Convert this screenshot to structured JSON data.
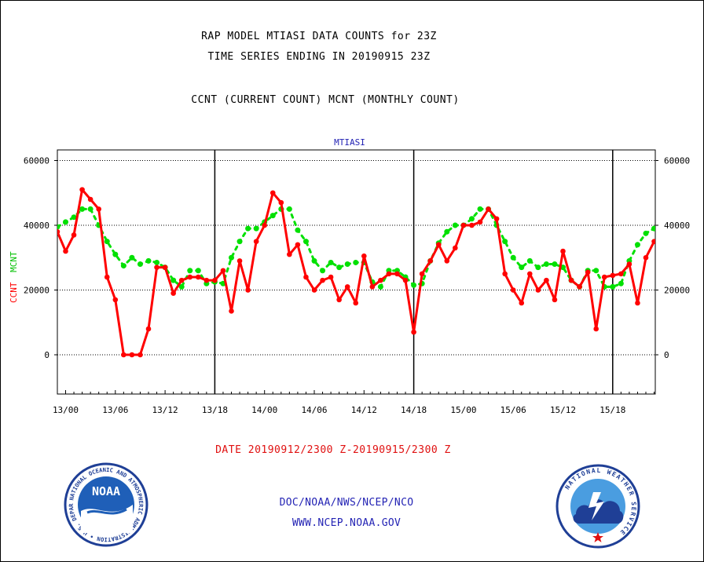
{
  "header": {
    "title1": "RAP MODEL MTIASI DATA COUNTS for 23Z",
    "title2": "TIME SERIES ENDING IN 20190915 23Z",
    "title3": "CCNT (CURRENT COUNT) MCNT (MONTHLY COUNT)"
  },
  "footer": {
    "date_range": "DATE 20190912/2300 Z-20190915/2300 Z",
    "line1": "DOC/NOAA/NWS/NCEP/NCO",
    "line2": "WWW.NCEP.NOAA.GOV",
    "noaa_logo_text": "NOAA",
    "noaa_ring_text": "NATIONAL OCEANIC AND ATMOSPHERIC ADMINISTRATION • U.S. DEPARTMENT OF COMMERCE",
    "nws_ring_text": "NATIONAL WEATHER SERVICE"
  },
  "colors": {
    "ccnt": "#ff0000",
    "mcnt": "#00e000",
    "title": "#000000",
    "chart_title": "#2323b4",
    "date_text": "#e01010",
    "footer_text": "#2323b4"
  },
  "chart_data": {
    "type": "line",
    "title": "MTIASI",
    "ylabel_parts": [
      "CCNT",
      "MCNT"
    ],
    "ylim": [
      -12000,
      63000
    ],
    "yticks": [
      0,
      20000,
      40000,
      60000
    ],
    "ytick_labels": [
      "0",
      "20000",
      "40000",
      "60000"
    ],
    "xlim": [
      -0.8,
      71
    ],
    "xticks": [
      0,
      6,
      12,
      18,
      24,
      30,
      36,
      42,
      48,
      54,
      60,
      66
    ],
    "xtick_labels": [
      "13/00",
      "13/06",
      "13/12",
      "13/18",
      "14/00",
      "14/06",
      "14/12",
      "14/18",
      "15/00",
      "15/06",
      "15/12",
      "15/18"
    ],
    "day_boundaries": [
      18,
      42,
      66
    ],
    "grid": true,
    "series": [
      {
        "name": "CCNT",
        "x": [
          -1,
          0,
          1,
          2,
          3,
          4,
          5,
          6,
          7,
          8,
          9,
          10,
          11,
          12,
          13,
          14,
          15,
          16,
          17,
          18,
          19,
          20,
          21,
          22,
          23,
          24,
          25,
          26,
          27,
          28,
          29,
          30,
          31,
          32,
          33,
          34,
          35,
          36,
          37,
          38,
          39,
          40,
          41,
          42,
          43,
          44,
          45,
          46,
          47,
          48,
          49,
          50,
          51,
          52,
          53,
          54,
          55,
          56,
          57,
          58,
          59,
          60,
          61,
          62,
          63,
          64,
          65,
          66,
          67,
          68,
          69,
          70,
          71
        ],
        "values": [
          38000,
          32000,
          37000,
          51000,
          48000,
          45000,
          24000,
          17000,
          0,
          0,
          0,
          8000,
          27000,
          27000,
          19000,
          23000,
          24000,
          24000,
          23000,
          23000,
          26000,
          13500,
          29000,
          20000,
          35000,
          40000,
          50000,
          47000,
          31000,
          34000,
          24000,
          20000,
          23000,
          24000,
          17000,
          21000,
          16000,
          30500,
          21000,
          23000,
          25000,
          25000,
          23000,
          7000,
          25000,
          29000,
          34000,
          29000,
          33000,
          40000,
          40000,
          41000,
          45000,
          42000,
          25000,
          20000,
          16000,
          25000,
          20000,
          23000,
          17000,
          32000,
          23000,
          21000,
          25500,
          8000,
          24000,
          24500,
          25000,
          28000,
          16000,
          30000,
          35000
        ]
      },
      {
        "name": "MCNT",
        "x": [
          -1,
          0,
          1,
          2,
          3,
          4,
          5,
          6,
          7,
          8,
          9,
          10,
          11,
          12,
          13,
          14,
          15,
          16,
          17,
          18,
          19,
          20,
          21,
          22,
          23,
          24,
          25,
          26,
          27,
          28,
          29,
          30,
          31,
          32,
          33,
          34,
          35,
          36,
          37,
          38,
          39,
          40,
          41,
          42,
          43,
          44,
          45,
          46,
          47,
          48,
          49,
          50,
          51,
          52,
          53,
          54,
          55,
          56,
          57,
          58,
          59,
          60,
          61,
          62,
          63,
          64,
          65,
          66,
          67,
          68,
          69,
          70,
          71
        ],
        "values": [
          39500,
          41000,
          42500,
          45000,
          45000,
          40000,
          35000,
          31000,
          27500,
          30000,
          28000,
          29000,
          28500,
          27000,
          23000,
          21000,
          26000,
          26000,
          22000,
          22500,
          22000,
          30000,
          35000,
          39000,
          39000,
          41000,
          43000,
          45000,
          45000,
          38500,
          35000,
          29000,
          26000,
          28500,
          27000,
          28000,
          28500,
          28500,
          22500,
          21000,
          26000,
          26000,
          24000,
          21500,
          22000,
          29000,
          34500,
          38000,
          40000,
          40000,
          42000,
          45000,
          45000,
          40000,
          35000,
          30000,
          27000,
          29000,
          27000,
          28000,
          28000,
          27000,
          23000,
          21000,
          26000,
          26000,
          21000,
          21000,
          22000,
          29000,
          34000,
          37500,
          39000
        ]
      }
    ]
  }
}
